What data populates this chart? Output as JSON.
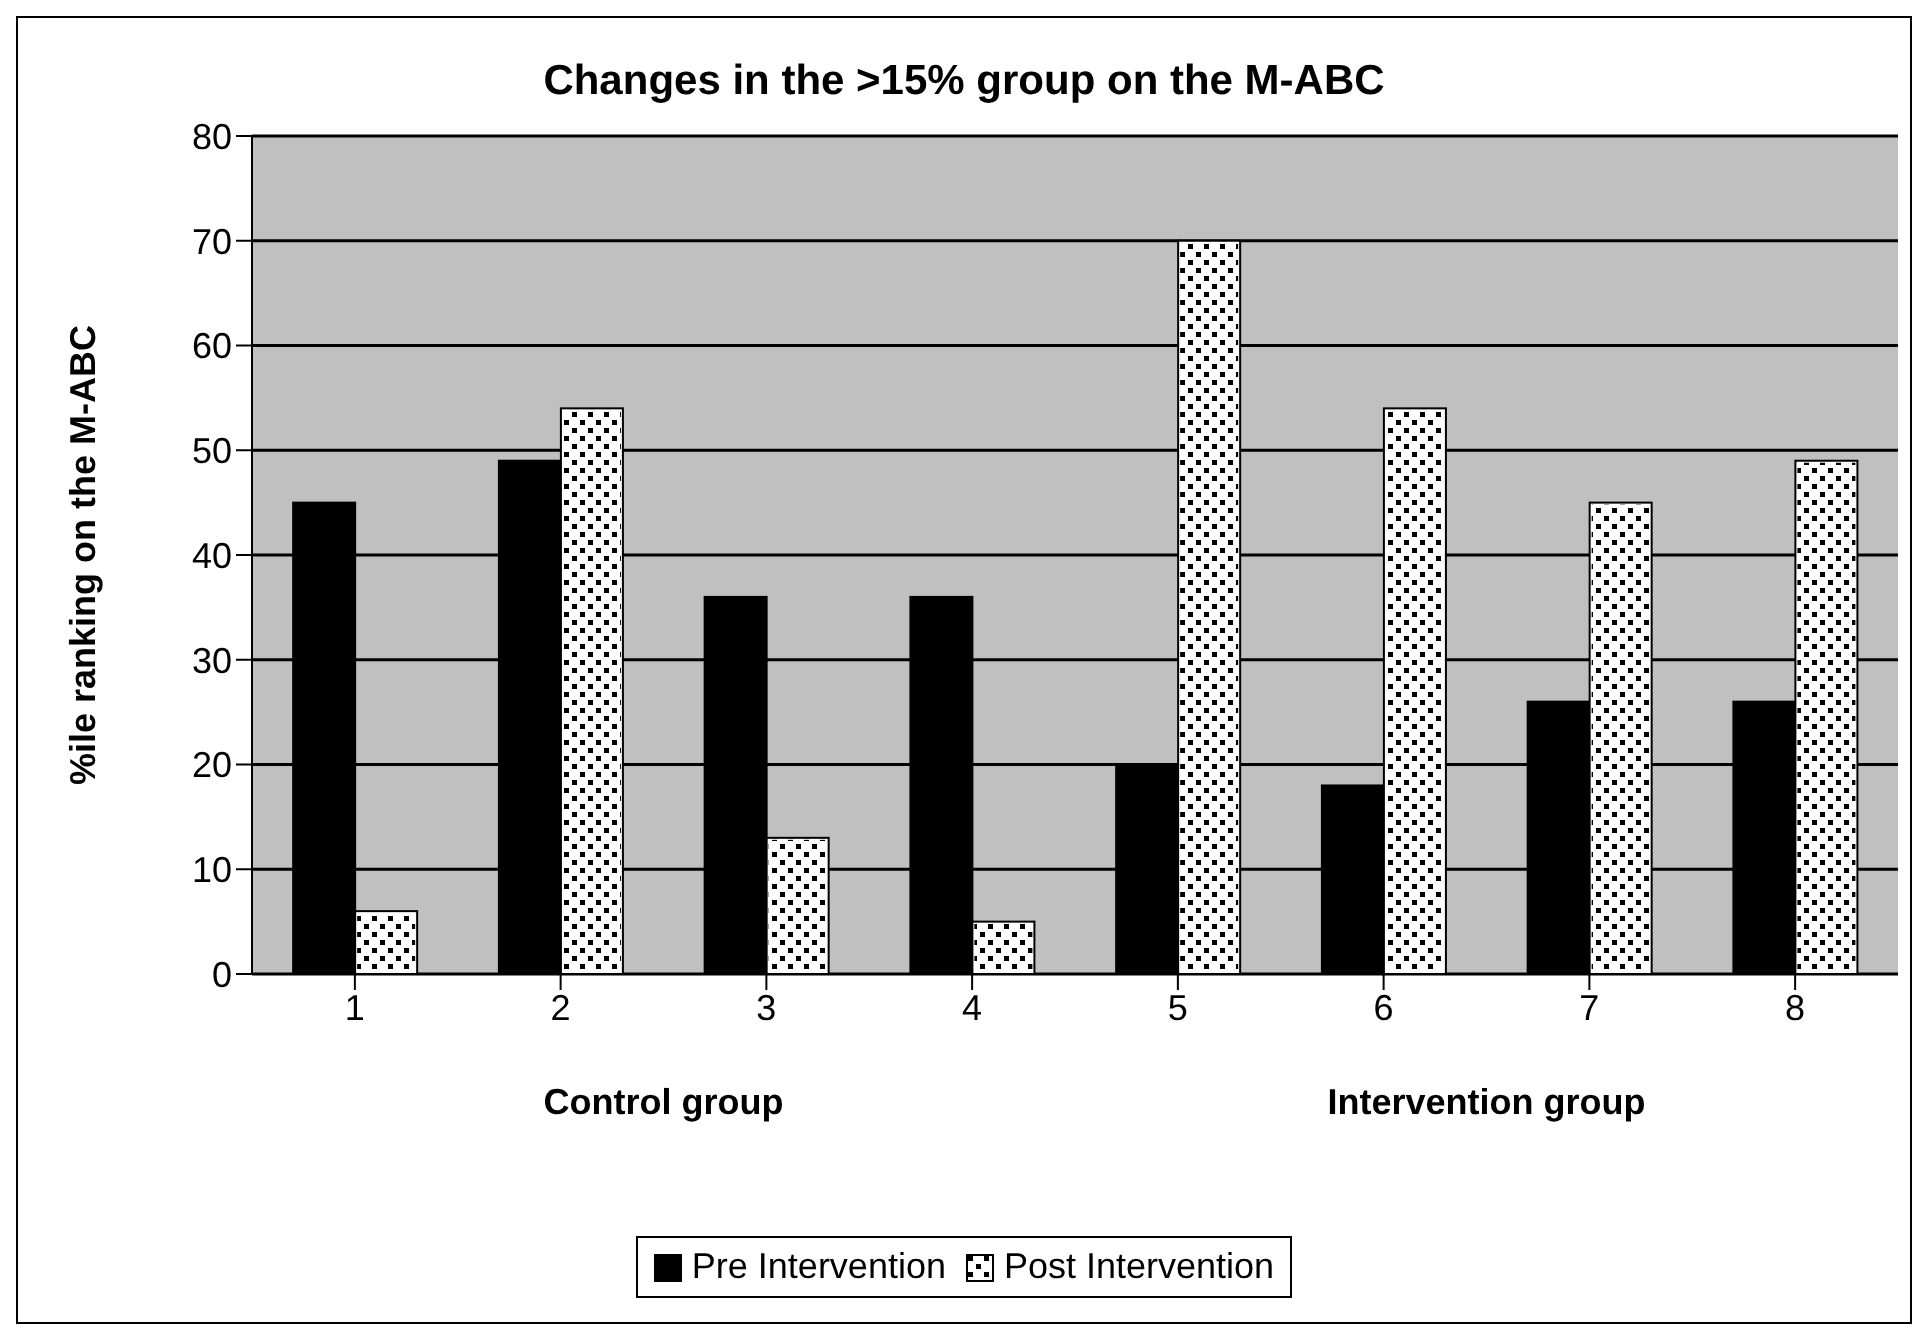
{
  "chart_data": {
    "type": "bar",
    "title": "Changes in the >15% group on the M-ABC",
    "ylabel": "%ile ranking on the M-ABC",
    "categories": [
      "1",
      "2",
      "3",
      "4",
      "5",
      "6",
      "7",
      "8"
    ],
    "series": [
      {
        "name": "Pre Intervention",
        "color": "#000000",
        "values": [
          45,
          49,
          36,
          36,
          20,
          18,
          26,
          26
        ]
      },
      {
        "name": "Post Intervention",
        "color": "#ffffff",
        "values": [
          6,
          54,
          13,
          5,
          70,
          54,
          45,
          49
        ]
      }
    ],
    "ylim": [
      0,
      80
    ],
    "yticks": [
      0,
      10,
      20,
      30,
      40,
      50,
      60,
      70,
      80
    ],
    "grid": "y",
    "legend": "bottom",
    "annotations": [
      "Control group",
      "Intervention group"
    ]
  }
}
